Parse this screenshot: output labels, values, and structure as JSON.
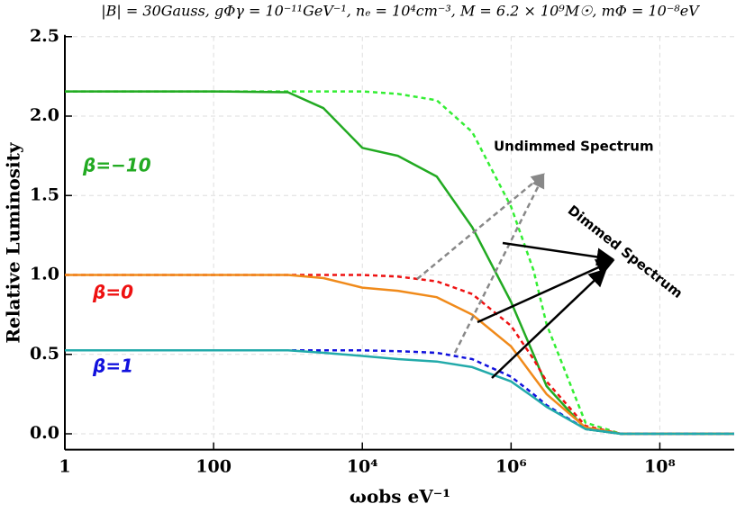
{
  "chart_data": {
    "type": "line",
    "title": "|B| = 30Gauss, gΦγ = 10⁻¹¹GeV⁻¹, nₑ = 10⁴cm⁻³, M = 6.2 × 10⁹M☉, mΦ = 10⁻⁸eV",
    "xlabel": "ωobs eV⁻¹",
    "ylabel": "Relative Luminosity",
    "log_x": true,
    "grid": true,
    "x": [
      1,
      10,
      100,
      1000,
      3000,
      10000,
      30000,
      100000,
      300000,
      1000000,
      2000000,
      3000000,
      10000000,
      30000000,
      100000000,
      1000000000
    ],
    "xlim": [
      1,
      1000000000
    ],
    "xticks": [
      1,
      100,
      {
        "value": 10000,
        "label": "10⁴"
      },
      {
        "value": 1000000,
        "label": "10⁶"
      },
      {
        "value": 100000000,
        "label": "10⁸"
      }
    ],
    "ylim": [
      -0.1,
      2.5
    ],
    "yticks": [
      {
        "value": 0,
        "label": "0.0"
      },
      0.5,
      {
        "value": 1,
        "label": "1.0"
      },
      1.5,
      {
        "value": 2,
        "label": "2.0"
      },
      2.5
    ],
    "series": [
      {
        "color": "#33ee33",
        "dashed": true,
        "values": [
          2.155,
          2.155,
          2.155,
          2.155,
          2.155,
          2.155,
          2.14,
          2.1,
          1.9,
          1.43,
          1.03,
          0.69,
          0.07,
          0.0,
          0.0,
          0.0
        ]
      },
      {
        "color": "#22aa22",
        "dashed": false,
        "values": [
          2.155,
          2.155,
          2.155,
          2.15,
          2.05,
          1.8,
          1.75,
          1.62,
          1.3,
          0.83,
          0.5,
          0.3,
          0.03,
          0.0,
          0.0,
          0.0
        ]
      },
      {
        "color": "#ee1111",
        "dashed": true,
        "values": [
          1.0,
          1.0,
          1.0,
          1.0,
          1.0,
          1.0,
          0.99,
          0.96,
          0.88,
          0.68,
          0.47,
          0.33,
          0.05,
          0.0,
          0.0,
          0.0
        ]
      },
      {
        "color": "#f08a1a",
        "dashed": false,
        "values": [
          1.0,
          1.0,
          1.0,
          1.0,
          0.98,
          0.92,
          0.9,
          0.86,
          0.75,
          0.55,
          0.36,
          0.25,
          0.04,
          0.0,
          0.0,
          0.0
        ]
      },
      {
        "color": "#1111dd",
        "dashed": true,
        "values": [
          0.525,
          0.525,
          0.525,
          0.525,
          0.525,
          0.525,
          0.52,
          0.51,
          0.47,
          0.36,
          0.25,
          0.18,
          0.03,
          0.0,
          0.0,
          0.0
        ]
      },
      {
        "color": "#22aaaa",
        "dashed": false,
        "values": [
          0.525,
          0.525,
          0.525,
          0.525,
          0.51,
          0.49,
          0.47,
          0.455,
          0.42,
          0.33,
          0.23,
          0.17,
          0.03,
          0.0,
          0.0,
          0.0
        ]
      }
    ],
    "annotations": [
      {
        "text": "β=−10",
        "color": "#22aa22"
      },
      {
        "text": "β=0",
        "color": "#ee1111"
      },
      {
        "text": "β=1",
        "color": "#1111dd"
      },
      {
        "text": "Undimmed Spectrum",
        "color": "#000000"
      },
      {
        "text": "Dimmed Spectrum",
        "color": "#000000"
      }
    ]
  }
}
